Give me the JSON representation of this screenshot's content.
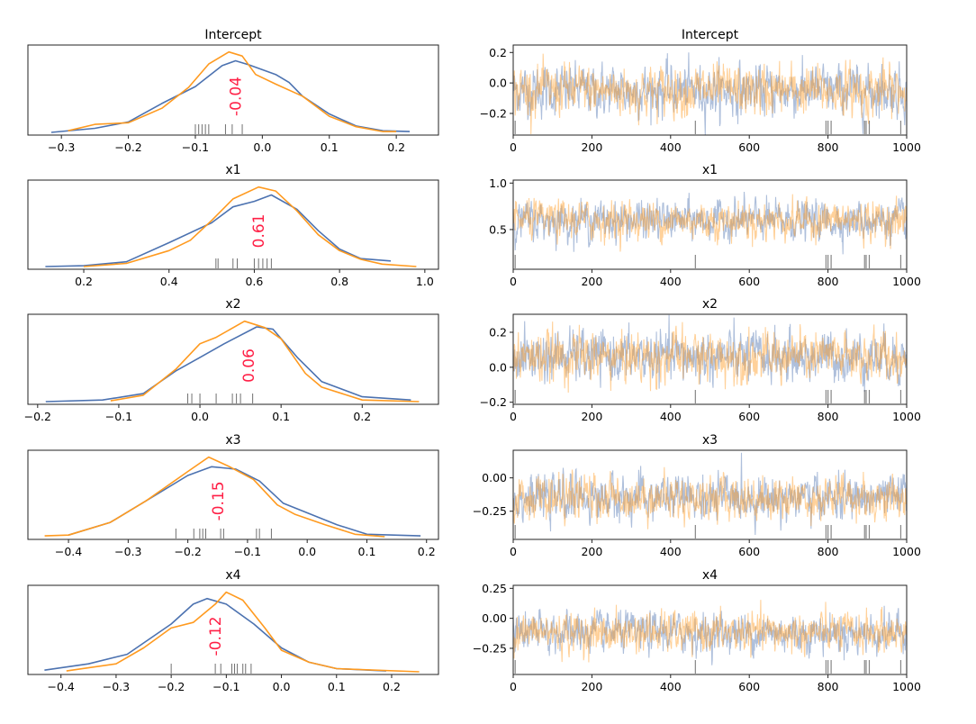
{
  "chart_data": {
    "type": "line",
    "kind": "MCMC traceplot (KDE + trace per variable)",
    "colors": {
      "chain_0": "#4c72b0",
      "chain_1": "#ff9a1f",
      "mean_label": "#ff1f45",
      "rug": "#333333"
    },
    "trace_xlim": [
      0,
      1000
    ],
    "trace_xticks": [
      "0",
      "200",
      "400",
      "600",
      "800",
      "1000"
    ],
    "trace_xtick_values": [
      0,
      200,
      400,
      600,
      800,
      1000
    ],
    "divergence_draws": [
      5,
      463,
      795,
      800,
      808,
      893,
      897,
      905,
      985
    ],
    "variables": [
      {
        "name": "Intercept",
        "mean_label": "-0.04",
        "mean": -0.04,
        "kde_xlim": [
          -0.35,
          0.263
        ],
        "kde_xticks": [
          "−0.3",
          "−0.2",
          "−0.1",
          "0.0",
          "0.1",
          "0.2"
        ],
        "kde_xtick_values": [
          -0.3,
          -0.2,
          -0.1,
          0.0,
          0.1,
          0.2
        ],
        "rug": [
          -0.1,
          -0.095,
          -0.09,
          -0.085,
          -0.08,
          -0.055,
          -0.045,
          -0.03
        ],
        "kde": [
          [
            [
              -0.315,
              0
            ],
            [
              -0.25,
              0.05
            ],
            [
              -0.2,
              0.13
            ],
            [
              -0.15,
              0.36
            ],
            [
              -0.1,
              0.57
            ],
            [
              -0.06,
              0.83
            ],
            [
              -0.04,
              0.89
            ],
            [
              -0.02,
              0.84
            ],
            [
              0.02,
              0.72
            ],
            [
              0.04,
              0.62
            ],
            [
              0.06,
              0.45
            ],
            [
              0.1,
              0.23
            ],
            [
              0.14,
              0.08
            ],
            [
              0.18,
              0.02
            ],
            [
              0.22,
              0.01
            ]
          ],
          [
            [
              -0.29,
              0.02
            ],
            [
              -0.25,
              0.1
            ],
            [
              -0.2,
              0.12
            ],
            [
              -0.15,
              0.3
            ],
            [
              -0.11,
              0.56
            ],
            [
              -0.08,
              0.85
            ],
            [
              -0.05,
              1.0
            ],
            [
              -0.03,
              0.95
            ],
            [
              -0.01,
              0.72
            ],
            [
              0.02,
              0.6
            ],
            [
              0.06,
              0.45
            ],
            [
              0.1,
              0.2
            ],
            [
              0.14,
              0.07
            ],
            [
              0.18,
              0.01
            ],
            [
              0.2,
              0.01
            ]
          ]
        ],
        "trace_ylim": [
          -0.342,
          0.249
        ],
        "trace_yticks": [
          "−0.2",
          "0.0",
          "0.2"
        ],
        "trace_ytick_values": [
          -0.2,
          0.0,
          0.2
        ],
        "trace_summary": [
          {
            "mean": -0.05,
            "sd": 0.08
          },
          {
            "mean": -0.05,
            "sd": 0.08
          }
        ]
      },
      {
        "name": "x1",
        "mean_label": "0.61",
        "mean": 0.61,
        "kde_xlim": [
          0.069,
          1.032
        ],
        "kde_xticks": [
          "0.2",
          "0.4",
          "0.6",
          "0.8",
          "1.0"
        ],
        "kde_xtick_values": [
          0.2,
          0.4,
          0.6,
          0.8,
          1.0
        ],
        "rug": [
          0.51,
          0.515,
          0.55,
          0.56,
          0.6,
          0.61,
          0.62,
          0.63,
          0.64
        ],
        "kde": [
          [
            [
              0.11,
              0
            ],
            [
              0.2,
              0.01
            ],
            [
              0.3,
              0.06
            ],
            [
              0.4,
              0.3
            ],
            [
              0.5,
              0.55
            ],
            [
              0.55,
              0.75
            ],
            [
              0.6,
              0.82
            ],
            [
              0.64,
              0.9
            ],
            [
              0.7,
              0.72
            ],
            [
              0.75,
              0.45
            ],
            [
              0.8,
              0.22
            ],
            [
              0.85,
              0.1
            ],
            [
              0.92,
              0.07
            ]
          ],
          [
            [
              0.2,
              0
            ],
            [
              0.3,
              0.04
            ],
            [
              0.4,
              0.2
            ],
            [
              0.45,
              0.33
            ],
            [
              0.5,
              0.58
            ],
            [
              0.55,
              0.85
            ],
            [
              0.61,
              1
            ],
            [
              0.65,
              0.95
            ],
            [
              0.7,
              0.7
            ],
            [
              0.75,
              0.4
            ],
            [
              0.8,
              0.2
            ],
            [
              0.85,
              0.09
            ],
            [
              0.9,
              0.03
            ],
            [
              0.98,
              0
            ]
          ]
        ],
        "trace_ylim": [
          0.073,
          1.032
        ],
        "trace_yticks": [
          "0.5",
          "1.0"
        ],
        "trace_ytick_values": [
          0.5,
          1.0
        ],
        "trace_summary": [
          {
            "mean": 0.6,
            "sd": 0.1
          },
          {
            "mean": 0.6,
            "sd": 0.1
          }
        ]
      },
      {
        "name": "x2",
        "mean_label": "0.06",
        "mean": 0.06,
        "kde_xlim": [
          -0.212,
          0.294
        ],
        "kde_xticks": [
          "−0.2",
          "−0.1",
          "0.0",
          "0.1",
          "0.2"
        ],
        "kde_xtick_values": [
          -0.2,
          -0.1,
          0.0,
          0.1,
          0.2
        ],
        "rug": [
          -0.015,
          -0.01,
          0.0,
          0.02,
          0.04,
          0.045,
          0.05,
          0.065
        ],
        "kde": [
          [
            [
              -0.19,
              0
            ],
            [
              -0.12,
              0.02
            ],
            [
              -0.07,
              0.1
            ],
            [
              -0.03,
              0.38
            ],
            [
              0,
              0.55
            ],
            [
              0.03,
              0.72
            ],
            [
              0.07,
              0.93
            ],
            [
              0.09,
              0.9
            ],
            [
              0.12,
              0.55
            ],
            [
              0.15,
              0.25
            ],
            [
              0.2,
              0.06
            ],
            [
              0.26,
              0.02
            ]
          ],
          [
            [
              -0.11,
              0.01
            ],
            [
              -0.07,
              0.08
            ],
            [
              -0.03,
              0.4
            ],
            [
              0,
              0.72
            ],
            [
              0.02,
              0.8
            ],
            [
              0.055,
              1
            ],
            [
              0.08,
              0.92
            ],
            [
              0.1,
              0.78
            ],
            [
              0.13,
              0.35
            ],
            [
              0.15,
              0.18
            ],
            [
              0.2,
              0.02
            ],
            [
              0.27,
              0
            ]
          ]
        ],
        "trace_ylim": [
          -0.212,
          0.303
        ],
        "trace_yticks": [
          "−0.2",
          "0.0",
          "0.2"
        ],
        "trace_ytick_values": [
          -0.2,
          0.0,
          0.2
        ],
        "trace_summary": [
          {
            "mean": 0.06,
            "sd": 0.07
          },
          {
            "mean": 0.06,
            "sd": 0.07
          }
        ]
      },
      {
        "name": "x3",
        "mean_label": "-0.15",
        "mean": -0.15,
        "kde_xlim": [
          -0.468,
          0.22
        ],
        "kde_xticks": [
          "−0.4",
          "−0.3",
          "−0.2",
          "−0.1",
          "0.0",
          "0.1",
          "0.2"
        ],
        "kde_xtick_values": [
          -0.4,
          -0.3,
          -0.2,
          -0.1,
          0.0,
          0.1,
          0.2
        ],
        "rug": [
          -0.22,
          -0.19,
          -0.18,
          -0.175,
          -0.17,
          -0.145,
          -0.14,
          -0.085,
          -0.08,
          -0.06
        ],
        "kde": [
          [
            [
              -0.4,
              0.02
            ],
            [
              -0.33,
              0.18
            ],
            [
              -0.27,
              0.45
            ],
            [
              -0.2,
              0.77
            ],
            [
              -0.16,
              0.88
            ],
            [
              -0.12,
              0.85
            ],
            [
              -0.08,
              0.7
            ],
            [
              -0.04,
              0.42
            ],
            [
              0,
              0.3
            ],
            [
              0.05,
              0.15
            ],
            [
              0.1,
              0.03
            ],
            [
              0.19,
              0.01
            ]
          ],
          [
            [
              -0.44,
              0.01
            ],
            [
              -0.4,
              0.02
            ],
            [
              -0.33,
              0.18
            ],
            [
              -0.27,
              0.45
            ],
            [
              -0.2,
              0.82
            ],
            [
              -0.165,
              1
            ],
            [
              -0.13,
              0.88
            ],
            [
              -0.09,
              0.72
            ],
            [
              -0.05,
              0.4
            ],
            [
              -0.02,
              0.28
            ],
            [
              0.03,
              0.15
            ],
            [
              0.08,
              0.03
            ],
            [
              0.13,
              0
            ]
          ]
        ],
        "trace_ylim": [
          -0.461,
          0.207
        ],
        "trace_yticks": [
          "−0.25",
          "0.00"
        ],
        "trace_ytick_values": [
          -0.25,
          0.0
        ],
        "trace_summary": [
          {
            "mean": -0.15,
            "sd": 0.08
          },
          {
            "mean": -0.15,
            "sd": 0.08
          }
        ]
      },
      {
        "name": "x4",
        "mean_label": "-0.12",
        "mean": -0.12,
        "kde_xlim": [
          -0.46,
          0.285
        ],
        "kde_xticks": [
          "−0.4",
          "−0.3",
          "−0.2",
          "−0.1",
          "0.0",
          "0.1",
          "0.2"
        ],
        "kde_xtick_values": [
          -0.4,
          -0.3,
          -0.2,
          -0.1,
          0.0,
          0.1,
          0.2
        ],
        "rug": [
          -0.2,
          -0.12,
          -0.11,
          -0.09,
          -0.085,
          -0.08,
          -0.07,
          -0.065,
          -0.055
        ],
        "kde": [
          [
            [
              -0.43,
              0.02
            ],
            [
              -0.35,
              0.1
            ],
            [
              -0.28,
              0.22
            ],
            [
              -0.2,
              0.6
            ],
            [
              -0.16,
              0.85
            ],
            [
              -0.135,
              0.92
            ],
            [
              -0.1,
              0.85
            ],
            [
              -0.05,
              0.6
            ],
            [
              0,
              0.3
            ],
            [
              0.05,
              0.12
            ],
            [
              0.1,
              0.04
            ],
            [
              0.19,
              0.01
            ]
          ],
          [
            [
              -0.39,
              0.01
            ],
            [
              -0.3,
              0.1
            ],
            [
              -0.25,
              0.3
            ],
            [
              -0.2,
              0.55
            ],
            [
              -0.16,
              0.62
            ],
            [
              -0.12,
              0.85
            ],
            [
              -0.1,
              1
            ],
            [
              -0.07,
              0.9
            ],
            [
              -0.03,
              0.55
            ],
            [
              0,
              0.27
            ],
            [
              0.05,
              0.12
            ],
            [
              0.1,
              0.04
            ],
            [
              0.25,
              0
            ]
          ]
        ],
        "trace_ylim": [
          -0.468,
          0.275
        ],
        "trace_yticks": [
          "−0.25",
          "0.00",
          "0.25"
        ],
        "trace_ytick_values": [
          -0.25,
          0.0,
          0.25
        ],
        "trace_summary": [
          {
            "mean": -0.12,
            "sd": 0.08
          },
          {
            "mean": -0.12,
            "sd": 0.08
          }
        ]
      }
    ]
  }
}
